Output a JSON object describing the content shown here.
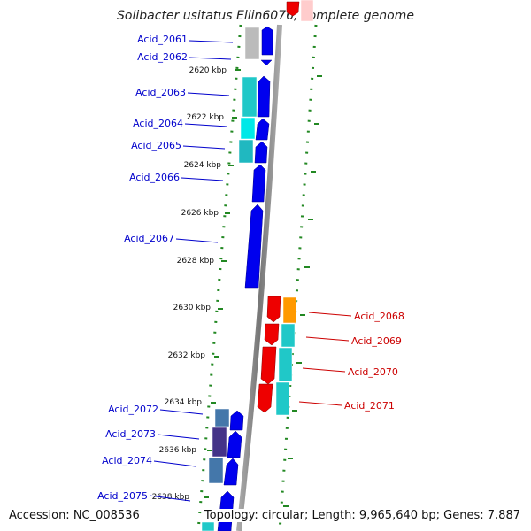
{
  "title": "Solibacter usitatus Ellin6076, complete genome",
  "footer": {
    "accession": "Accession: NC_008536",
    "topology": "Topology: circular; Length: 9,965,640 bp; Genes: 7,887"
  },
  "ticks": [
    "2620 kbp",
    "2622 kbp",
    "2624 kbp",
    "2626 kbp",
    "2628 kbp",
    "2630 kbp",
    "2632 kbp",
    "2634 kbp",
    "2636 kbp",
    "2638 kbp"
  ],
  "genes_left": [
    "Acid_2061",
    "Acid_2062",
    "Acid_2063",
    "Acid_2064",
    "Acid_2065",
    "Acid_2066",
    "Acid_2067",
    "Acid_2072",
    "Acid_2073",
    "Acid_2074",
    "Acid_2075"
  ],
  "genes_right": [
    "Acid_2068",
    "Acid_2069",
    "Acid_2070",
    "Acid_2071"
  ],
  "colors": {
    "left_label": "#0000cc",
    "right_label": "#cc0000",
    "forward_cds": "#0000ee",
    "reverse_cds": "#ee0000",
    "cog_cyan": "#20c8c8",
    "cog_orange": "#ff9900",
    "cog_gray": "#bbbbbb",
    "cog_steel": "#4477aa",
    "cog_purple": "#443388",
    "backbone": "#888888",
    "dotted_ring": "#228822"
  }
}
